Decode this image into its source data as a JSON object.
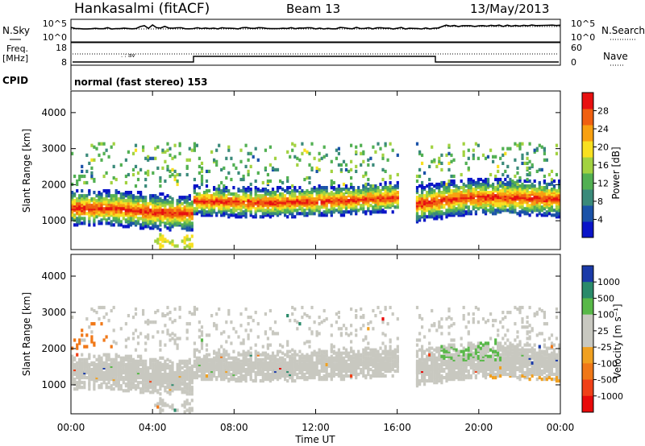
{
  "header": {
    "station": "Hankasalmi (fitACF)",
    "beam": "Beam 13",
    "date": "13/May/2013"
  },
  "ancillary": {
    "nsky_label": "N.Sky",
    "nsearch_label": "N.Search",
    "freq_label": "Freq.",
    "freq_units": "[MHz]",
    "nave_label": "Nave",
    "cpid_label": "CPID",
    "cpid_text": "normal (fast stereo) 153",
    "noise_ticks": [
      "10^5",
      "10^0"
    ],
    "freq_ticks": [
      "18",
      "8"
    ],
    "nave_ticks": [
      "60",
      "0"
    ]
  },
  "colors": {
    "power_scale": [
      "#0a14c8",
      "#1a52a8",
      "#3a8a7a",
      "#52b052",
      "#a2d240",
      "#f8e020",
      "#f8a010",
      "#f06010",
      "#e81010"
    ],
    "velocity_scale": [
      "#e80a0a",
      "#f04018",
      "#f07818",
      "#f0a020",
      "#c8c8c0",
      "#c8c8c0",
      "#58b848",
      "#2a8a6a",
      "#1a3aa8"
    ]
  },
  "chart_data": [
    {
      "type": "heatmap",
      "panel": "power",
      "xlabel": "",
      "ylabel": "Slant Range [km]",
      "x_range_hours": [
        0,
        24
      ],
      "ylim": [
        200,
        4600
      ],
      "yticks": [
        1000,
        2000,
        3000,
        4000
      ],
      "colorbar": {
        "label": "Power [dB]",
        "range": [
          0,
          32
        ],
        "ticks": [
          4,
          8,
          12,
          16,
          20,
          24,
          28
        ]
      },
      "bands": [
        {
          "x0": 0.0,
          "x1": 6.0,
          "center": [
            1400,
            1400,
            1300,
            1250
          ],
          "width": 500,
          "value": 24
        },
        {
          "x0": 6.0,
          "x1": 16.0,
          "center": [
            1600,
            1550,
            1600,
            1700
          ],
          "width": 420,
          "value": 20
        },
        {
          "x0": 16.8,
          "x1": 24.0,
          "center": [
            1500,
            1700,
            1700,
            1650
          ],
          "width": 500,
          "value": 22
        }
      ]
    },
    {
      "type": "heatmap",
      "panel": "velocity",
      "xlabel": "Time UT",
      "ylabel": "Slant Range [km]",
      "x_range_hours": [
        0,
        24
      ],
      "ylim": [
        200,
        4600
      ],
      "yticks": [
        1000,
        2000,
        3000,
        4000
      ],
      "xticks": [
        "00:00",
        "04:00",
        "08:00",
        "12:00",
        "16:00",
        "20:00",
        "00:00"
      ],
      "colorbar": {
        "label": "Velocity [m s⁻¹]",
        "ticks": [
          1000,
          500,
          100,
          25,
          -25,
          -100,
          -500,
          -1000
        ]
      },
      "dominant_value": 0
    }
  ]
}
